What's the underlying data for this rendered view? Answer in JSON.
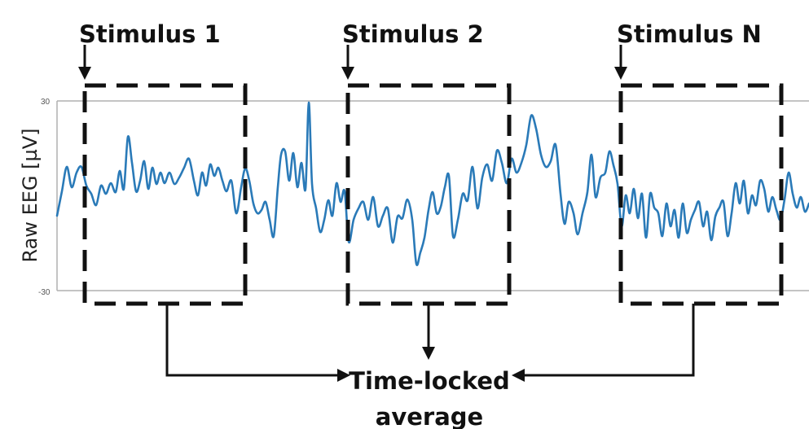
{
  "axis": {
    "title": "Raw EEG [µV]",
    "y_max_label": "30",
    "y_min_label": "-30",
    "ylim": [
      -30,
      30
    ]
  },
  "stimuli": [
    {
      "label": "Stimulus 1"
    },
    {
      "label": "Stimulus 2"
    },
    {
      "label": "Stimulus N"
    }
  ],
  "result": {
    "line1": "Time-locked",
    "line2": "average"
  },
  "colors": {
    "signal": "#2a7ab8",
    "axis": "#b0b0b0",
    "ink": "#111111"
  }
}
